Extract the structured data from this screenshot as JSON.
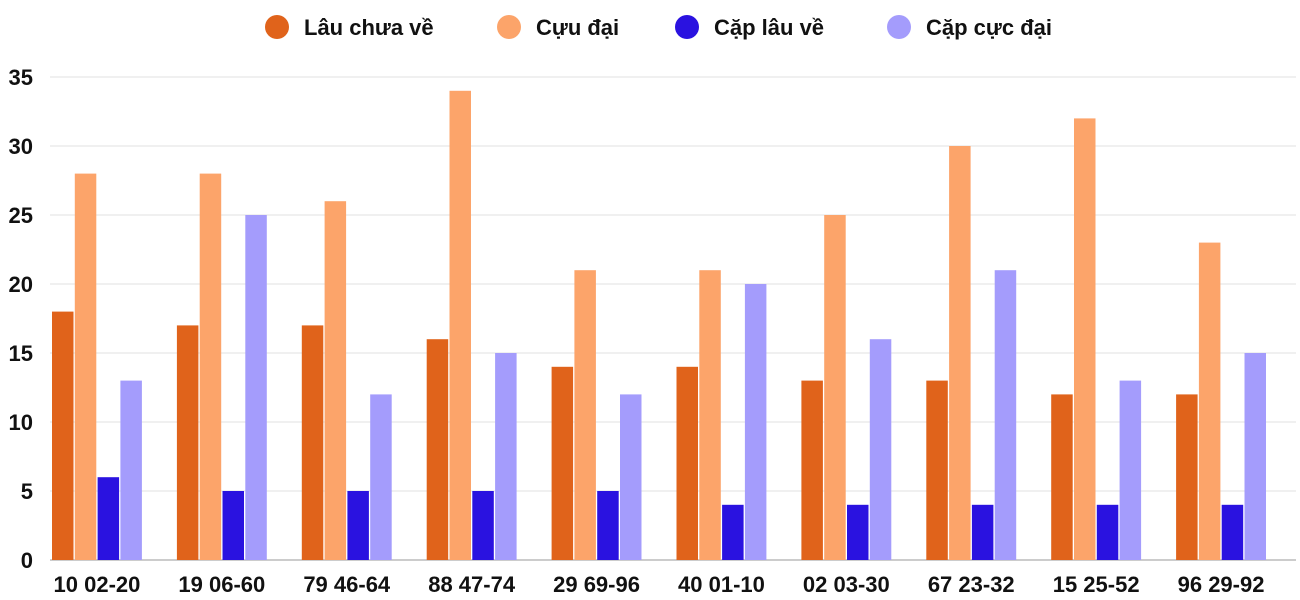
{
  "chart_data": {
    "type": "bar",
    "title": "",
    "xlabel": "",
    "ylabel": "",
    "ylim": [
      0,
      35
    ],
    "yticks": [
      0,
      5,
      10,
      15,
      20,
      25,
      30,
      35
    ],
    "grid": true,
    "legend_position": "top-center",
    "categories": [
      "10 02-20",
      "19 06-60",
      "79 46-64",
      "88 47-74",
      "29 69-96",
      "40 01-10",
      "02 03-30",
      "67 23-32",
      "15 25-52",
      "96 29-92"
    ],
    "series": [
      {
        "name": "Lâu chưa về",
        "color": "#e0631b",
        "values": [
          18,
          17,
          17,
          16,
          14,
          14,
          13,
          13,
          12,
          12
        ]
      },
      {
        "name": "Cựu đại",
        "color": "#fca46a",
        "values": [
          28,
          28,
          26,
          34,
          21,
          21,
          25,
          30,
          32,
          23
        ]
      },
      {
        "name": "Cặp lâu về",
        "color": "#2a12e0",
        "values": [
          6,
          5,
          5,
          5,
          5,
          4,
          4,
          4,
          4,
          4
        ]
      },
      {
        "name": "Cặp cực đại",
        "color": "#a49cfc",
        "values": [
          13,
          25,
          12,
          15,
          12,
          20,
          16,
          21,
          13,
          15
        ]
      }
    ]
  }
}
